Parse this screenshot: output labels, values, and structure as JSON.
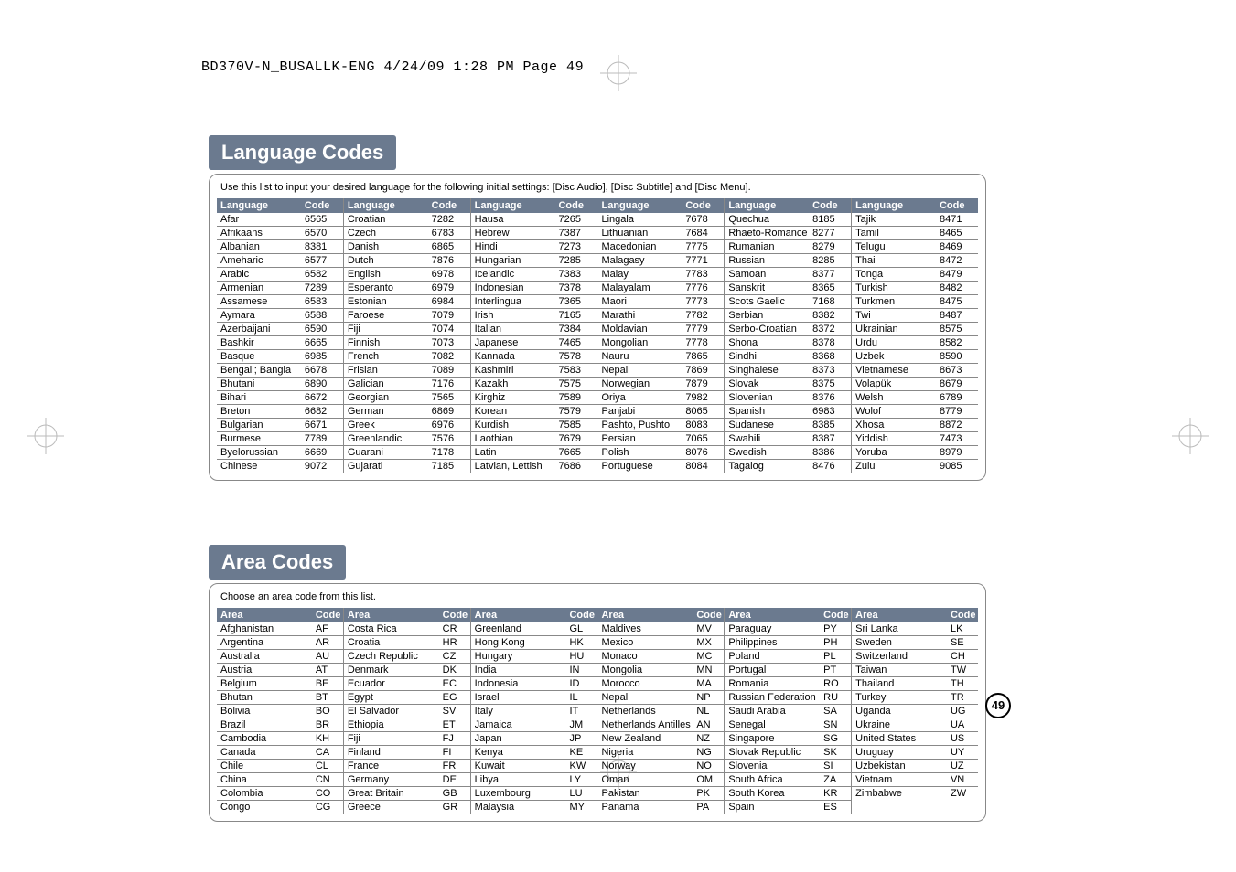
{
  "print_header": "BD370V-N_BUSALLK-ENG  4/24/09  1:28 PM  Page 49",
  "page_number": "49",
  "lang_section": {
    "title": "Language Codes",
    "instruction": "Use this list to input your desired language for the following initial settings: [Disc Audio], [Disc Subtitle] and [Disc Menu].",
    "header_name": "Language",
    "header_code": "Code",
    "columns": [
      [
        [
          "Afar",
          "6565"
        ],
        [
          "Afrikaans",
          "6570"
        ],
        [
          "Albanian",
          "8381"
        ],
        [
          "Ameharic",
          "6577"
        ],
        [
          "Arabic",
          "6582"
        ],
        [
          "Armenian",
          "7289"
        ],
        [
          "Assamese",
          "6583"
        ],
        [
          "Aymara",
          "6588"
        ],
        [
          "Azerbaijani",
          "6590"
        ],
        [
          "Bashkir",
          "6665"
        ],
        [
          "Basque",
          "6985"
        ],
        [
          "Bengali; Bangla",
          "6678"
        ],
        [
          "Bhutani",
          "6890"
        ],
        [
          "Bihari",
          "6672"
        ],
        [
          "Breton",
          "6682"
        ],
        [
          "Bulgarian",
          "6671"
        ],
        [
          "Burmese",
          "7789"
        ],
        [
          "Byelorussian",
          "6669"
        ],
        [
          "Chinese",
          "9072"
        ]
      ],
      [
        [
          "Croatian",
          "7282"
        ],
        [
          "Czech",
          "6783"
        ],
        [
          "Danish",
          "6865"
        ],
        [
          "Dutch",
          "7876"
        ],
        [
          "English",
          "6978"
        ],
        [
          "Esperanto",
          "6979"
        ],
        [
          "Estonian",
          "6984"
        ],
        [
          "Faroese",
          "7079"
        ],
        [
          "Fiji",
          "7074"
        ],
        [
          "Finnish",
          "7073"
        ],
        [
          "French",
          "7082"
        ],
        [
          "Frisian",
          "7089"
        ],
        [
          "Galician",
          "7176"
        ],
        [
          "Georgian",
          "7565"
        ],
        [
          "German",
          "6869"
        ],
        [
          "Greek",
          "6976"
        ],
        [
          "Greenlandic",
          "7576"
        ],
        [
          "Guarani",
          "7178"
        ],
        [
          "Gujarati",
          "7185"
        ]
      ],
      [
        [
          "Hausa",
          "7265"
        ],
        [
          "Hebrew",
          "7387"
        ],
        [
          "Hindi",
          "7273"
        ],
        [
          "Hungarian",
          "7285"
        ],
        [
          "Icelandic",
          "7383"
        ],
        [
          "Indonesian",
          "7378"
        ],
        [
          "Interlingua",
          "7365"
        ],
        [
          "Irish",
          "7165"
        ],
        [
          "Italian",
          "7384"
        ],
        [
          "Japanese",
          "7465"
        ],
        [
          "Kannada",
          "7578"
        ],
        [
          "Kashmiri",
          "7583"
        ],
        [
          "Kazakh",
          "7575"
        ],
        [
          "Kirghiz",
          "7589"
        ],
        [
          "Korean",
          "7579"
        ],
        [
          "Kurdish",
          "7585"
        ],
        [
          "Laothian",
          "7679"
        ],
        [
          "Latin",
          "7665"
        ],
        [
          "Latvian, Lettish",
          "7686"
        ]
      ],
      [
        [
          "Lingala",
          "7678"
        ],
        [
          "Lithuanian",
          "7684"
        ],
        [
          "Macedonian",
          "7775"
        ],
        [
          "Malagasy",
          "7771"
        ],
        [
          "Malay",
          "7783"
        ],
        [
          "Malayalam",
          "7776"
        ],
        [
          "Maori",
          "7773"
        ],
        [
          "Marathi",
          "7782"
        ],
        [
          "Moldavian",
          "7779"
        ],
        [
          "Mongolian",
          "7778"
        ],
        [
          "Nauru",
          "7865"
        ],
        [
          "Nepali",
          "7869"
        ],
        [
          "Norwegian",
          "7879"
        ],
        [
          "Oriya",
          "7982"
        ],
        [
          "Panjabi",
          "8065"
        ],
        [
          "Pashto, Pushto",
          "8083"
        ],
        [
          "Persian",
          "7065"
        ],
        [
          "Polish",
          "8076"
        ],
        [
          "Portuguese",
          "8084"
        ]
      ],
      [
        [
          "Quechua",
          "8185"
        ],
        [
          "Rhaeto-Romance",
          "8277"
        ],
        [
          "Rumanian",
          "8279"
        ],
        [
          "Russian",
          "8285"
        ],
        [
          "Samoan",
          "8377"
        ],
        [
          "Sanskrit",
          "8365"
        ],
        [
          "Scots Gaelic",
          "7168"
        ],
        [
          "Serbian",
          "8382"
        ],
        [
          "Serbo-Croatian",
          "8372"
        ],
        [
          "Shona",
          "8378"
        ],
        [
          "Sindhi",
          "8368"
        ],
        [
          "Singhalese",
          "8373"
        ],
        [
          "Slovak",
          "8375"
        ],
        [
          "Slovenian",
          "8376"
        ],
        [
          "Spanish",
          "6983"
        ],
        [
          "Sudanese",
          "8385"
        ],
        [
          "Swahili",
          "8387"
        ],
        [
          "Swedish",
          "8386"
        ],
        [
          "Tagalog",
          "8476"
        ]
      ],
      [
        [
          "Tajik",
          "8471"
        ],
        [
          "Tamil",
          "8465"
        ],
        [
          "Telugu",
          "8469"
        ],
        [
          "Thai",
          "8472"
        ],
        [
          "Tonga",
          "8479"
        ],
        [
          "Turkish",
          "8482"
        ],
        [
          "Turkmen",
          "8475"
        ],
        [
          "Twi",
          "8487"
        ],
        [
          "Ukrainian",
          "8575"
        ],
        [
          "Urdu",
          "8582"
        ],
        [
          "Uzbek",
          "8590"
        ],
        [
          "Vietnamese",
          "8673"
        ],
        [
          "Volapük",
          "8679"
        ],
        [
          "Welsh",
          "6789"
        ],
        [
          "Wolof",
          "8779"
        ],
        [
          "Xhosa",
          "8872"
        ],
        [
          "Yiddish",
          "7473"
        ],
        [
          "Yoruba",
          "8979"
        ],
        [
          "Zulu",
          "9085"
        ]
      ]
    ]
  },
  "area_section": {
    "title": "Area Codes",
    "instruction": "Choose an area code from this list.",
    "header_name": "Area",
    "header_code": "Code",
    "columns": [
      [
        [
          "Afghanistan",
          "AF"
        ],
        [
          "Argentina",
          "AR"
        ],
        [
          "Australia",
          "AU"
        ],
        [
          "Austria",
          "AT"
        ],
        [
          "Belgium",
          "BE"
        ],
        [
          "Bhutan",
          "BT"
        ],
        [
          "Bolivia",
          "BO"
        ],
        [
          "Brazil",
          "BR"
        ],
        [
          "Cambodia",
          "KH"
        ],
        [
          "Canada",
          "CA"
        ],
        [
          "Chile",
          "CL"
        ],
        [
          "China",
          "CN"
        ],
        [
          "Colombia",
          "CO"
        ],
        [
          "Congo",
          "CG"
        ]
      ],
      [
        [
          "Costa Rica",
          "CR"
        ],
        [
          "Croatia",
          "HR"
        ],
        [
          "Czech Republic",
          "CZ"
        ],
        [
          "Denmark",
          "DK"
        ],
        [
          "Ecuador",
          "EC"
        ],
        [
          "Egypt",
          "EG"
        ],
        [
          "El Salvador",
          "SV"
        ],
        [
          "Ethiopia",
          "ET"
        ],
        [
          "Fiji",
          "FJ"
        ],
        [
          "Finland",
          "FI"
        ],
        [
          "France",
          "FR"
        ],
        [
          "Germany",
          "DE"
        ],
        [
          "Great Britain",
          "GB"
        ],
        [
          "Greece",
          "GR"
        ]
      ],
      [
        [
          "Greenland",
          "GL"
        ],
        [
          "Hong Kong",
          "HK"
        ],
        [
          "Hungary",
          "HU"
        ],
        [
          "India",
          "IN"
        ],
        [
          "Indonesia",
          "ID"
        ],
        [
          "Israel",
          "IL"
        ],
        [
          "Italy",
          "IT"
        ],
        [
          "Jamaica",
          "JM"
        ],
        [
          "Japan",
          "JP"
        ],
        [
          "Kenya",
          "KE"
        ],
        [
          "Kuwait",
          "KW"
        ],
        [
          "Libya",
          "LY"
        ],
        [
          "Luxembourg",
          "LU"
        ],
        [
          "Malaysia",
          "MY"
        ]
      ],
      [
        [
          "Maldives",
          "MV"
        ],
        [
          "Mexico",
          "MX"
        ],
        [
          "Monaco",
          "MC"
        ],
        [
          "Mongolia",
          "MN"
        ],
        [
          "Morocco",
          "MA"
        ],
        [
          "Nepal",
          "NP"
        ],
        [
          "Netherlands",
          "NL"
        ],
        [
          "Netherlands Antilles",
          "AN"
        ],
        [
          "New Zealand",
          "NZ"
        ],
        [
          "Nigeria",
          "NG"
        ],
        [
          "Norway",
          "NO"
        ],
        [
          "Oman",
          "OM"
        ],
        [
          "Pakistan",
          "PK"
        ],
        [
          "Panama",
          "PA"
        ]
      ],
      [
        [
          "Paraguay",
          "PY"
        ],
        [
          "Philippines",
          "PH"
        ],
        [
          "Poland",
          "PL"
        ],
        [
          "Portugal",
          "PT"
        ],
        [
          "Romania",
          "RO"
        ],
        [
          "Russian Federation",
          "RU"
        ],
        [
          "Saudi Arabia",
          "SA"
        ],
        [
          "Senegal",
          "SN"
        ],
        [
          "Singapore",
          "SG"
        ],
        [
          "Slovak Republic",
          "SK"
        ],
        [
          "Slovenia",
          "SI"
        ],
        [
          "South Africa",
          "ZA"
        ],
        [
          "South Korea",
          "KR"
        ],
        [
          "Spain",
          "ES"
        ]
      ],
      [
        [
          "Sri Lanka",
          "LK"
        ],
        [
          "Sweden",
          "SE"
        ],
        [
          "Switzerland",
          "CH"
        ],
        [
          "Taiwan",
          "TW"
        ],
        [
          "Thailand",
          "TH"
        ],
        [
          "Turkey",
          "TR"
        ],
        [
          "Uganda",
          "UG"
        ],
        [
          "Ukraine",
          "UA"
        ],
        [
          "United States",
          "US"
        ],
        [
          "Uruguay",
          "UY"
        ],
        [
          "Uzbekistan",
          "UZ"
        ],
        [
          "Vietnam",
          "VN"
        ],
        [
          "Zimbabwe",
          "ZW"
        ]
      ]
    ]
  },
  "colors": {
    "header_bg": "#6b7a8f",
    "border": "#888888"
  }
}
